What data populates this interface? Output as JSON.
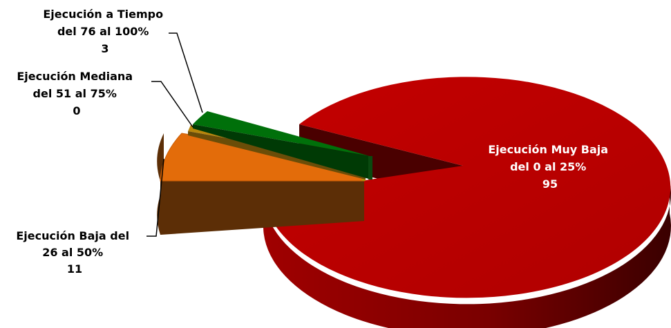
{
  "chart_data": {
    "type": "pie",
    "title": "",
    "slices": [
      {
        "label_lines": [
          "Ejecución Muy Baja",
          "del 0 al 25%"
        ],
        "value": 95,
        "value_text": "95",
        "color": "#c00000",
        "dark_color": "#5a0000",
        "label_color": "#ffffff"
      },
      {
        "label_lines": [
          "Ejecución Baja del",
          "26 al 50%"
        ],
        "value": 11,
        "value_text": "11",
        "color": "#e36c0a",
        "dark_color": "#5c2e06",
        "label_color": "#000000"
      },
      {
        "label_lines": [
          "Ejecución Mediana",
          "del 51 al 75%"
        ],
        "value": 0,
        "value_text": "0",
        "color": "#b8860b",
        "dark_color": "#6b4d08",
        "label_color": "#000000"
      },
      {
        "label_lines": [
          "Ejecución a Tiempo",
          "del 76 al 100%"
        ],
        "value": 3,
        "value_text": "3",
        "color": "#00700a",
        "dark_color": "#003a05",
        "label_color": "#000000"
      }
    ],
    "style": "3d-exploded",
    "legend": "none"
  }
}
